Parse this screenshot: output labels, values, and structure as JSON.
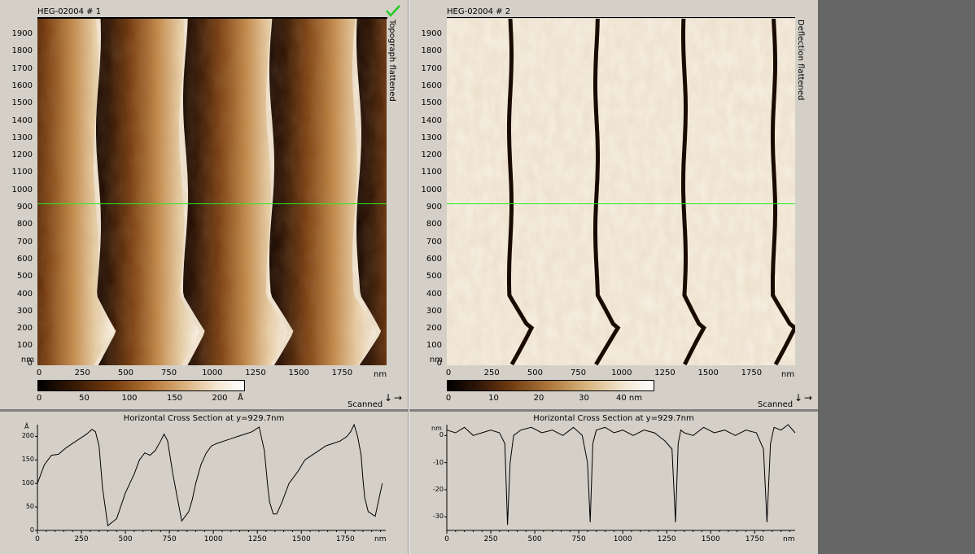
{
  "panel1": {
    "title": "HEG-02004 # 1",
    "side_label": "Topograph flattened",
    "check_icon": "checkmark-icon",
    "check_color": "#22cc22",
    "y_unit": "nm",
    "x_unit": "nm",
    "y_ticks": [
      "1900",
      "1800",
      "1700",
      "1600",
      "1500",
      "1400",
      "1300",
      "1200",
      "1100",
      "1000",
      "900",
      "800",
      "700",
      "600",
      "500",
      "400",
      "300",
      "200",
      "100",
      "0"
    ],
    "x_ticks": [
      "0",
      "250",
      "500",
      "750",
      "1000",
      "1250",
      "1500",
      "1750"
    ],
    "colorbar_ticks": [
      "0",
      "50",
      "100",
      "150",
      "200"
    ],
    "colorbar_unit": "Å",
    "scanned_label": "Scanned",
    "cross_line_color": "#22ee22"
  },
  "panel2": {
    "title": "HEG-02004 # 2",
    "side_label": "Deflection flattened",
    "y_unit": "nm",
    "x_unit": "nm",
    "y_ticks": [
      "1900",
      "1800",
      "1700",
      "1600",
      "1500",
      "1400",
      "1300",
      "1200",
      "1100",
      "1000",
      "900",
      "800",
      "700",
      "600",
      "500",
      "400",
      "300",
      "200",
      "100",
      "0"
    ],
    "x_ticks": [
      "0",
      "250",
      "500",
      "750",
      "1000",
      "1250",
      "1500",
      "1750"
    ],
    "colorbar_ticks": [
      "0",
      "10",
      "20",
      "30",
      "40 nm"
    ],
    "scanned_label": "Scanned"
  },
  "cross1": {
    "title": "Horizontal Cross Section at y=929.7nm",
    "y_unit": "Å",
    "x_unit": "nm",
    "y_ticks": [
      "200",
      "150",
      "100",
      "50",
      "0"
    ],
    "x_ticks": [
      "0",
      "250",
      "500",
      "750",
      "1000",
      "1250",
      "1500",
      "1750"
    ]
  },
  "cross2": {
    "title": "Horizontal Cross Section at y=929.7nm",
    "y_unit": "nm",
    "x_unit": "nm",
    "y_ticks": [
      "0",
      "-10",
      "-20",
      "-30"
    ],
    "x_ticks": [
      "0",
      "250",
      "500",
      "750",
      "1000",
      "1250",
      "1500",
      "1750"
    ]
  },
  "chart_data": [
    {
      "type": "line",
      "title": "Horizontal Cross Section at y=929.7nm",
      "xlabel": "nm",
      "ylabel": "Å",
      "xlim": [
        0,
        1980
      ],
      "ylim": [
        0,
        225
      ],
      "x": [
        0,
        40,
        80,
        120,
        160,
        200,
        240,
        280,
        310,
        330,
        350,
        370,
        400,
        450,
        500,
        550,
        580,
        610,
        640,
        670,
        700,
        720,
        740,
        770,
        800,
        820,
        840,
        860,
        880,
        900,
        930,
        960,
        990,
        1020,
        1060,
        1100,
        1140,
        1180,
        1220,
        1260,
        1290,
        1310,
        1320,
        1340,
        1360,
        1390,
        1430,
        1480,
        1520,
        1560,
        1600,
        1640,
        1680,
        1720,
        1760,
        1780,
        1800,
        1820,
        1840,
        1850,
        1860,
        1880,
        1920,
        1960
      ],
      "y": [
        100,
        140,
        160,
        162,
        175,
        185,
        195,
        205,
        215,
        210,
        180,
        90,
        10,
        25,
        80,
        120,
        150,
        165,
        160,
        170,
        190,
        205,
        190,
        120,
        60,
        20,
        30,
        40,
        65,
        100,
        140,
        165,
        180,
        185,
        190,
        195,
        200,
        205,
        210,
        220,
        170,
        90,
        60,
        35,
        35,
        60,
        100,
        125,
        150,
        160,
        170,
        180,
        185,
        190,
        200,
        210,
        225,
        200,
        160,
        110,
        70,
        40,
        30,
        100
      ]
    },
    {
      "type": "line",
      "title": "Horizontal Cross Section at y=929.7nm",
      "xlabel": "nm",
      "ylabel": "nm",
      "xlim": [
        0,
        1980
      ],
      "ylim": [
        -35,
        4
      ],
      "x": [
        0,
        50,
        100,
        150,
        200,
        250,
        300,
        330,
        345,
        360,
        380,
        420,
        480,
        540,
        600,
        660,
        720,
        770,
        800,
        815,
        830,
        850,
        900,
        950,
        1000,
        1060,
        1120,
        1180,
        1240,
        1280,
        1300,
        1315,
        1330,
        1350,
        1400,
        1460,
        1520,
        1580,
        1640,
        1700,
        1760,
        1800,
        1820,
        1840,
        1860,
        1900,
        1940,
        1980
      ],
      "y": [
        2,
        1,
        3,
        0,
        1,
        2,
        1,
        -3,
        -33,
        -10,
        0,
        2,
        3,
        1,
        2,
        0,
        3,
        0,
        -10,
        -32,
        -3,
        2,
        3,
        1,
        2,
        0,
        2,
        1,
        -2,
        -5,
        -32,
        -3,
        2,
        1,
        0,
        3,
        1,
        2,
        0,
        2,
        1,
        -5,
        -32,
        -3,
        3,
        2,
        4,
        1
      ]
    }
  ]
}
